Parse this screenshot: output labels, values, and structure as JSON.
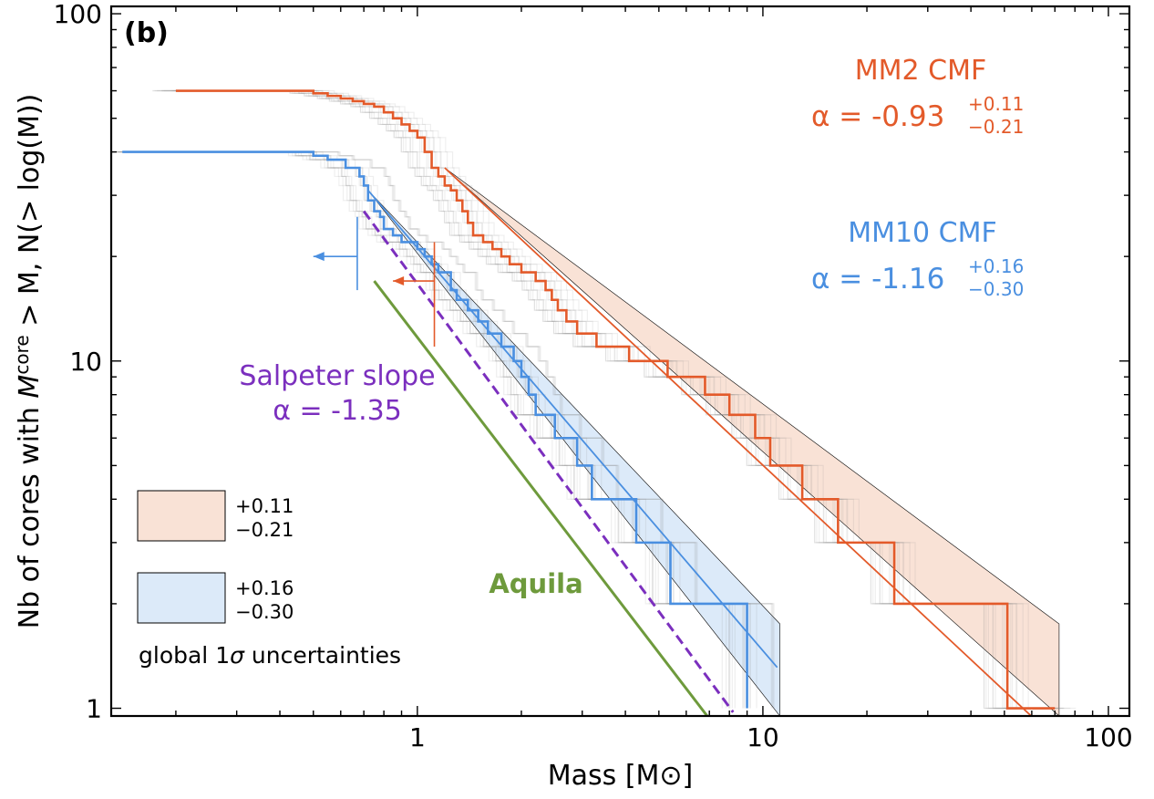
{
  "chart_data": {
    "type": "line",
    "panel_label": "(b)",
    "xlabel": "Mass [M⊙]",
    "ylabel_main": "Nb of cores with ",
    "ylabel_italic_m": "M",
    "ylabel_sup": "core",
    "ylabel_rest": " > M, N(> log(M))",
    "x_scale": "log",
    "y_scale": "log",
    "xlim": [
      0.13,
      115
    ],
    "ylim": [
      0.95,
      105
    ],
    "x_ticks": [
      {
        "value": 1,
        "label": "1"
      },
      {
        "value": 10,
        "label": "10"
      },
      {
        "value": 100,
        "label": "100"
      }
    ],
    "y_ticks": [
      {
        "value": 1,
        "label": "1"
      },
      {
        "value": 10,
        "label": "10"
      },
      {
        "value": 100,
        "label": "100"
      }
    ],
    "grid": false,
    "colors": {
      "mm2": "#e35a2a",
      "mm10": "#4a8fe0",
      "salpeter": "#7b2fbe",
      "aquila": "#6e9a3c",
      "band_mm2": "#f9e2d6",
      "band_mm10": "#dceaf9",
      "ensemble": "#808080"
    },
    "series": [
      {
        "key": "mm2",
        "steps": [
          [
            0.2,
            60
          ],
          [
            0.4,
            60
          ],
          [
            0.5,
            59
          ],
          [
            0.55,
            58
          ],
          [
            0.6,
            57
          ],
          [
            0.65,
            56
          ],
          [
            0.7,
            55
          ],
          [
            0.75,
            54
          ],
          [
            0.8,
            52
          ],
          [
            0.85,
            50
          ],
          [
            0.9,
            48
          ],
          [
            0.95,
            46
          ],
          [
            1.0,
            44
          ],
          [
            1.05,
            40
          ],
          [
            1.1,
            36
          ],
          [
            1.15,
            34
          ],
          [
            1.2,
            32
          ],
          [
            1.25,
            31
          ],
          [
            1.3,
            29
          ],
          [
            1.35,
            27
          ],
          [
            1.4,
            25
          ],
          [
            1.45,
            23
          ],
          [
            1.55,
            22
          ],
          [
            1.65,
            21
          ],
          [
            1.75,
            20
          ],
          [
            1.85,
            19
          ],
          [
            2.0,
            18
          ],
          [
            2.2,
            17
          ],
          [
            2.35,
            16
          ],
          [
            2.45,
            15
          ],
          [
            2.55,
            14
          ],
          [
            2.7,
            13
          ],
          [
            2.9,
            12
          ],
          [
            3.3,
            11
          ],
          [
            4.1,
            10
          ],
          [
            5.3,
            9
          ],
          [
            6.8,
            8
          ],
          [
            8.0,
            7
          ],
          [
            9.5,
            6
          ],
          [
            10.5,
            5
          ],
          [
            13.0,
            4
          ],
          [
            16.5,
            3
          ],
          [
            24.0,
            2
          ],
          [
            51.0,
            1
          ],
          [
            70.0,
            1
          ]
        ],
        "fit": {
          "alpha": -0.93,
          "x_range": [
            1.2,
            62
          ]
        },
        "band": {
          "upper": [
            [
              1.2,
              36
            ],
            [
              72,
              1.75
            ]
          ],
          "lower": [
            [
              1.2,
              36
            ],
            [
              72,
              0.95
            ]
          ]
        },
        "limit_marker": {
          "x": 1.12,
          "y_low": 11,
          "y_high": 22,
          "arrow_y": 17,
          "arrow_to": 0.85
        },
        "label": {
          "line1": "MM2  CMF",
          "alpha_prefix": "α = -0.93",
          "sup": "+0.11",
          "sub": "−0.21"
        }
      },
      {
        "key": "mm10",
        "steps": [
          [
            0.14,
            40
          ],
          [
            0.45,
            40
          ],
          [
            0.5,
            39
          ],
          [
            0.55,
            38
          ],
          [
            0.62,
            36
          ],
          [
            0.68,
            34
          ],
          [
            0.7,
            32
          ],
          [
            0.72,
            29
          ],
          [
            0.75,
            27
          ],
          [
            0.78,
            26
          ],
          [
            0.8,
            24
          ],
          [
            0.85,
            23
          ],
          [
            0.9,
            22
          ],
          [
            1.0,
            21
          ],
          [
            1.05,
            20
          ],
          [
            1.1,
            19
          ],
          [
            1.15,
            18
          ],
          [
            1.25,
            16
          ],
          [
            1.3,
            15
          ],
          [
            1.4,
            14
          ],
          [
            1.5,
            13
          ],
          [
            1.6,
            12
          ],
          [
            1.75,
            11
          ],
          [
            1.9,
            10
          ],
          [
            2.0,
            9
          ],
          [
            2.1,
            8
          ],
          [
            2.2,
            7
          ],
          [
            2.5,
            6
          ],
          [
            2.9,
            5
          ],
          [
            3.2,
            4
          ],
          [
            4.3,
            3
          ],
          [
            5.4,
            2
          ],
          [
            9.0,
            1
          ]
        ],
        "fit": {
          "alpha": -1.16,
          "x_range": [
            0.72,
            11
          ]
        },
        "band": {
          "upper": [
            [
              0.72,
              31
            ],
            [
              11.2,
              1.75
            ]
          ],
          "lower": [
            [
              0.72,
              31
            ],
            [
              11.2,
              0.95
            ]
          ]
        },
        "limit_marker": {
          "x": 0.67,
          "y_low": 16,
          "y_high": 26,
          "arrow_y": 20,
          "arrow_to": 0.5
        },
        "label": {
          "line1": "MM10  CMF",
          "alpha_prefix": "α = -1.16",
          "sup": "+0.16",
          "sub": "−0.30"
        }
      }
    ],
    "salpeter": {
      "alpha": -1.35,
      "x_range": [
        0.7,
        8.2
      ],
      "style": "dashed",
      "line1": "Salpeter slope",
      "line2": "α = -1.35"
    },
    "aquila": {
      "x_range": [
        0.75,
        6.9
      ],
      "y_range": [
        17,
        0.95
      ],
      "label": "Aquila"
    },
    "legend": {
      "position": "lower-left",
      "entries": [
        {
          "key": "band_mm2",
          "upper": "+0.11",
          "lower": "−0.21"
        },
        {
          "key": "band_mm10",
          "upper": "+0.16",
          "lower": "−0.30"
        }
      ],
      "caption_prefix": "global 1",
      "caption_sigma": "σ",
      "caption_suffix": " uncertainties"
    }
  }
}
